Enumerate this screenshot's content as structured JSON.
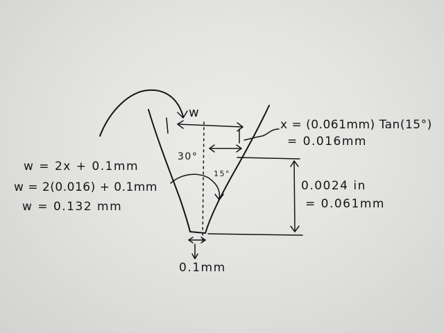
{
  "notes": {
    "w_label": "w",
    "angle_30": "30°",
    "angle_15": "15°",
    "x_formula": "x = (0.061mm) Tan(15°)",
    "x_result": "= 0.016mm",
    "w_eq1": "w = 2x + 0.1mm",
    "w_eq2": "w = 2(0.016) + 0.1mm",
    "w_eq3": "w = 0.132 mm",
    "depth_in": "0.0024 in",
    "depth_mm": "= 0.061mm",
    "tip_width": "0.1mm"
  },
  "colors": {
    "paper": "#e6e6e4",
    "ink": "#141414"
  }
}
